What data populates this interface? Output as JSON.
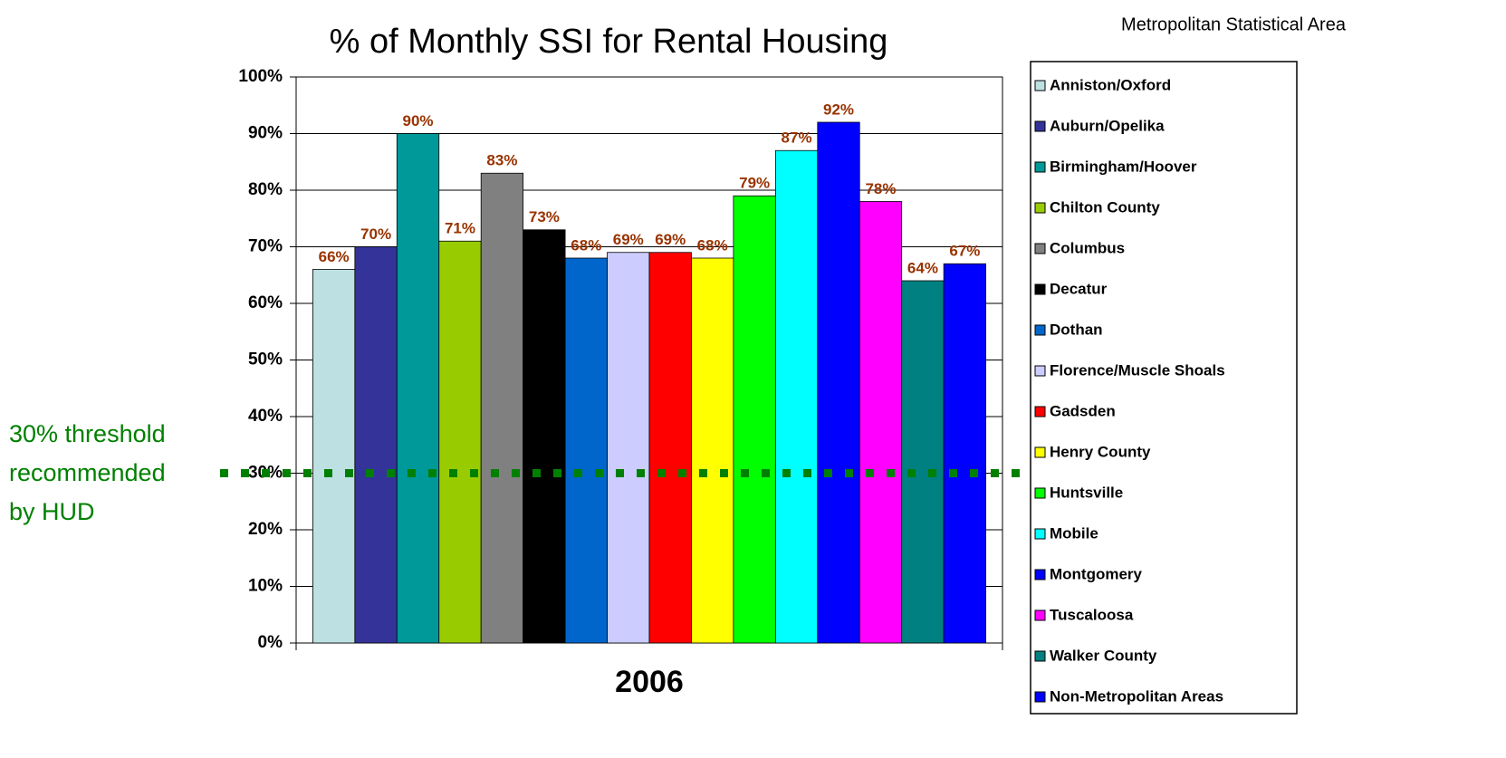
{
  "chart_data": {
    "type": "bar",
    "title": "% of Monthly SSI for Rental Housing",
    "legend_title": "Metropolitan Statistical Area",
    "categories": [
      "2006"
    ],
    "series": [
      {
        "name": "Anniston/Oxford",
        "color": "#bde0e3",
        "values": [
          66
        ],
        "value_labels": [
          "66%"
        ]
      },
      {
        "name": "Auburn/Opelika",
        "color": "#333399",
        "values": [
          70
        ],
        "value_labels": [
          "70%"
        ]
      },
      {
        "name": "Birmingham/Hoover",
        "color": "#009999",
        "values": [
          90
        ],
        "value_labels": [
          "90%"
        ]
      },
      {
        "name": "Chilton County",
        "color": "#99cc00",
        "values": [
          71
        ],
        "value_labels": [
          "71%"
        ]
      },
      {
        "name": "Columbus",
        "color": "#808080",
        "values": [
          83
        ],
        "value_labels": [
          "83%"
        ]
      },
      {
        "name": "Decatur",
        "color": "#000000",
        "values": [
          73
        ],
        "value_labels": [
          "73%"
        ]
      },
      {
        "name": "Dothan",
        "color": "#0066cc",
        "values": [
          68
        ],
        "value_labels": [
          "68%"
        ]
      },
      {
        "name": "Florence/Muscle Shoals",
        "color": "#ccccff",
        "values": [
          69
        ],
        "value_labels": [
          "69%"
        ]
      },
      {
        "name": "Gadsden",
        "color": "#ff0000",
        "values": [
          69
        ],
        "value_labels": [
          "69%"
        ]
      },
      {
        "name": "Henry County",
        "color": "#ffff00",
        "values": [
          68
        ],
        "value_labels": [
          "68%"
        ]
      },
      {
        "name": "Huntsville",
        "color": "#00ff00",
        "values": [
          79
        ],
        "value_labels": [
          "79%"
        ]
      },
      {
        "name": "Mobile",
        "color": "#00ffff",
        "values": [
          87
        ],
        "value_labels": [
          "87%"
        ]
      },
      {
        "name": "Montgomery",
        "color": "#0000ff",
        "values": [
          92
        ],
        "value_labels": [
          "92%"
        ]
      },
      {
        "name": "Tuscaloosa",
        "color": "#ff00ff",
        "values": [
          78
        ],
        "value_labels": [
          "78%"
        ]
      },
      {
        "name": "Walker County",
        "color": "#008080",
        "values": [
          64
        ],
        "value_labels": [
          "64%"
        ]
      },
      {
        "name": "Non-Metropolitan Areas",
        "color": "#0000ff",
        "values": [
          67
        ],
        "value_labels": [
          "67%"
        ]
      }
    ],
    "ylim": [
      0,
      100
    ],
    "yticks": [
      {
        "value": 0,
        "label": "0%"
      },
      {
        "value": 10,
        "label": "10%"
      },
      {
        "value": 20,
        "label": "20%"
      },
      {
        "value": 30,
        "label": "30%"
      },
      {
        "value": 40,
        "label": "40%"
      },
      {
        "value": 50,
        "label": "50%"
      },
      {
        "value": 60,
        "label": "60%"
      },
      {
        "value": 70,
        "label": "70%"
      },
      {
        "value": 80,
        "label": "80%"
      },
      {
        "value": 90,
        "label": "90%"
      },
      {
        "value": 100,
        "label": "100%"
      }
    ],
    "grid": true,
    "label_color": "#993300",
    "threshold_value": 30,
    "threshold_color": "#008000",
    "threshold_label": [
      "30% threshold",
      "recommended",
      "by HUD"
    ],
    "legend_position": "right"
  }
}
